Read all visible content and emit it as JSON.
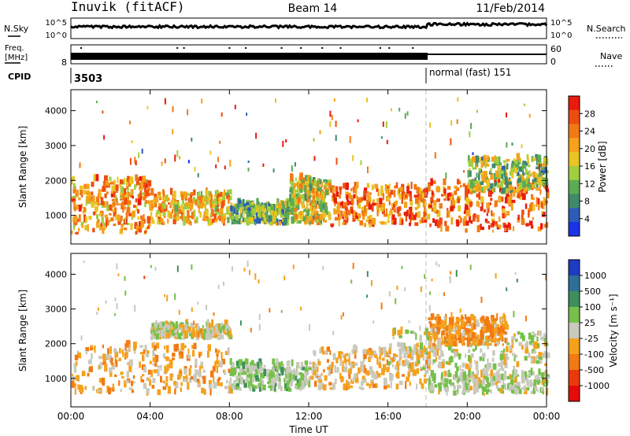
{
  "header": {
    "station": "Inuvik (fitACF)",
    "beam": "Beam 14",
    "date": "11/Feb/2014"
  },
  "sky_panel": {
    "left_label": "N.Sky",
    "right_label": "N.Search",
    "ticks_left": [
      "10^5",
      "10^0"
    ],
    "ticks_right": [
      "10^5",
      "10^0"
    ]
  },
  "freq_panel": {
    "left_label_1": "Freq.",
    "left_label_2": "[MHz]",
    "right_label": "Nave",
    "ticks_left": [
      "8"
    ],
    "ticks_right": [
      "60",
      "0"
    ]
  },
  "cpid_panel": {
    "label": "CPID",
    "mode_1": "3503",
    "mode_2": "normal (fast) 151"
  },
  "power_panel": {
    "ylabel": "Slant Range [km]",
    "yticks": [
      "1000",
      "2000",
      "3000",
      "4000"
    ],
    "colorbar_label": "Power [dB]",
    "colorbar_ticks": [
      "4",
      "8",
      "12",
      "16",
      "20",
      "24",
      "28"
    ],
    "colorbar_colors": [
      "#1a33e6",
      "#2d5cb8",
      "#3f8a6a",
      "#5cab55",
      "#9fcf3f",
      "#e9c423",
      "#f5a11c",
      "#f27a15",
      "#ee4d10",
      "#ea1a0d"
    ]
  },
  "velocity_panel": {
    "ylabel": "Slant Range [km]",
    "yticks": [
      "1000",
      "2000",
      "3000",
      "4000"
    ],
    "colorbar_label": "Velocity [m s⁻¹]",
    "colorbar_ticks": [
      "1000",
      "500",
      "100",
      "25",
      "-25",
      "-100",
      "-500",
      "-1000"
    ],
    "colorbar_colors": [
      "#1c3cc4",
      "#2e6f9a",
      "#3f8f5c",
      "#76c04a",
      "#c9c9bd",
      "#f5a11c",
      "#f27a15",
      "#ea3a0d",
      "#e60b0b"
    ]
  },
  "x_axis": {
    "label": "Time UT",
    "ticks": [
      "00:00",
      "04:00",
      "08:00",
      "12:00",
      "16:00",
      "20:00",
      "00:00"
    ]
  },
  "chart_data": {
    "type": "heatmap",
    "title": "Inuvik (fitACF) Beam 14 11/Feb/2014",
    "xlabel": "Time UT",
    "ylabel": "Slant Range [km]",
    "xlim_hours": [
      0,
      24
    ],
    "ylim_km": [
      180,
      4600
    ],
    "mode_change_hour": 18,
    "power_colorbar_db": [
      0,
      32
    ],
    "velocity_colorbar_ms": [
      -1000,
      1000
    ],
    "power_regions": [
      {
        "t0": 0,
        "t1": 4,
        "r0": 450,
        "r1": 2000,
        "value_db": 22
      },
      {
        "t0": 4,
        "t1": 8,
        "r0": 700,
        "r1": 1600,
        "value_db": 20
      },
      {
        "t0": 8,
        "t1": 11,
        "r0": 700,
        "r1": 1300,
        "value_db": 12
      },
      {
        "t0": 11,
        "t1": 13,
        "r0": 700,
        "r1": 2000,
        "value_db": 16
      },
      {
        "t0": 13,
        "t1": 18,
        "r0": 650,
        "r1": 1800,
        "value_db": 24
      },
      {
        "t0": 18,
        "t1": 24,
        "r0": 500,
        "r1": 1900,
        "value_db": 26
      },
      {
        "t0": 20,
        "t1": 24,
        "r0": 1600,
        "r1": 2600,
        "value_db": 14
      }
    ],
    "velocity_regions": [
      {
        "t0": 0,
        "t1": 8,
        "r0": 500,
        "r1": 1900,
        "value_ms": -200
      },
      {
        "t0": 4,
        "t1": 8,
        "r0": 2100,
        "r1": 2500,
        "value_ms": 0
      },
      {
        "t0": 8,
        "t1": 12,
        "r0": 600,
        "r1": 1400,
        "value_ms": 150
      },
      {
        "t0": 12,
        "t1": 18,
        "r0": 650,
        "r1": 1800,
        "value_ms": -150
      },
      {
        "t0": 16,
        "t1": 24,
        "r0": 1200,
        "r1": 2300,
        "value_ms": 0
      },
      {
        "t0": 18,
        "t1": 24,
        "r0": 500,
        "r1": 1100,
        "value_ms": 80
      },
      {
        "t0": 18,
        "t1": 22,
        "r0": 1900,
        "r1": 2700,
        "value_ms": -300
      }
    ]
  }
}
